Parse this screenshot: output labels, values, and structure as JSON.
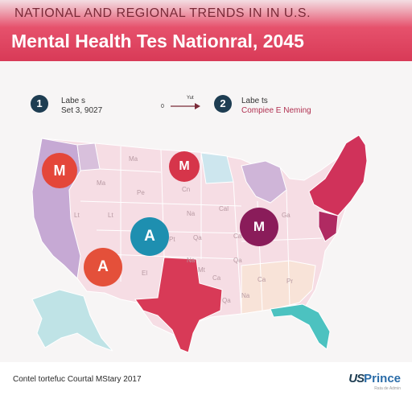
{
  "header": {
    "subtitle": "NATIONAL AND REGIONAL TRENDS IN IN U.S.",
    "title": "Mental Health Tes Nationral, 2045"
  },
  "legend": [
    {
      "number": "1",
      "line1": "Labe s",
      "line2": "Set 3, 9027"
    },
    {
      "number": "2",
      "line1": "Labe ts",
      "line2": "Compiee E Neming"
    }
  ],
  "legend_arrow_left": "0",
  "legend_arrow_label": "Yut",
  "state_labels": [
    "Ma",
    "Ma",
    "Pe",
    "Lt",
    "Lt",
    "Cn",
    "Cal",
    "Na",
    "Qa",
    "Na",
    "Pt",
    "Ca",
    "Na",
    "Qa",
    "Lt",
    "Ca",
    "Qa",
    "El",
    "Mt",
    "Ca",
    "Pr",
    "Na",
    "Ga"
  ],
  "markers": [
    {
      "letter": "M",
      "color": "#e4473a"
    },
    {
      "letter": "M",
      "color": "#d6354a"
    },
    {
      "letter": "A",
      "color": "#1e8fb0"
    },
    {
      "letter": "A",
      "color": "#e4503a"
    },
    {
      "letter": "M",
      "color": "#8a1c5a"
    }
  ],
  "colors": {
    "header_red": "#d83a57",
    "texas": "#d83a57",
    "northeast": "#d0325a",
    "west_lavender": "#c6a9d4",
    "florida_teal": "#4cc2c0",
    "alaska": "#bfe3e6",
    "base_pink": "#f6dde4"
  },
  "footer": {
    "source": "Contel tortefuc Courtal MStary 2017",
    "logo_part1": "US",
    "logo_part2": "Prince",
    "logo_sub": "Rata de Admin"
  }
}
